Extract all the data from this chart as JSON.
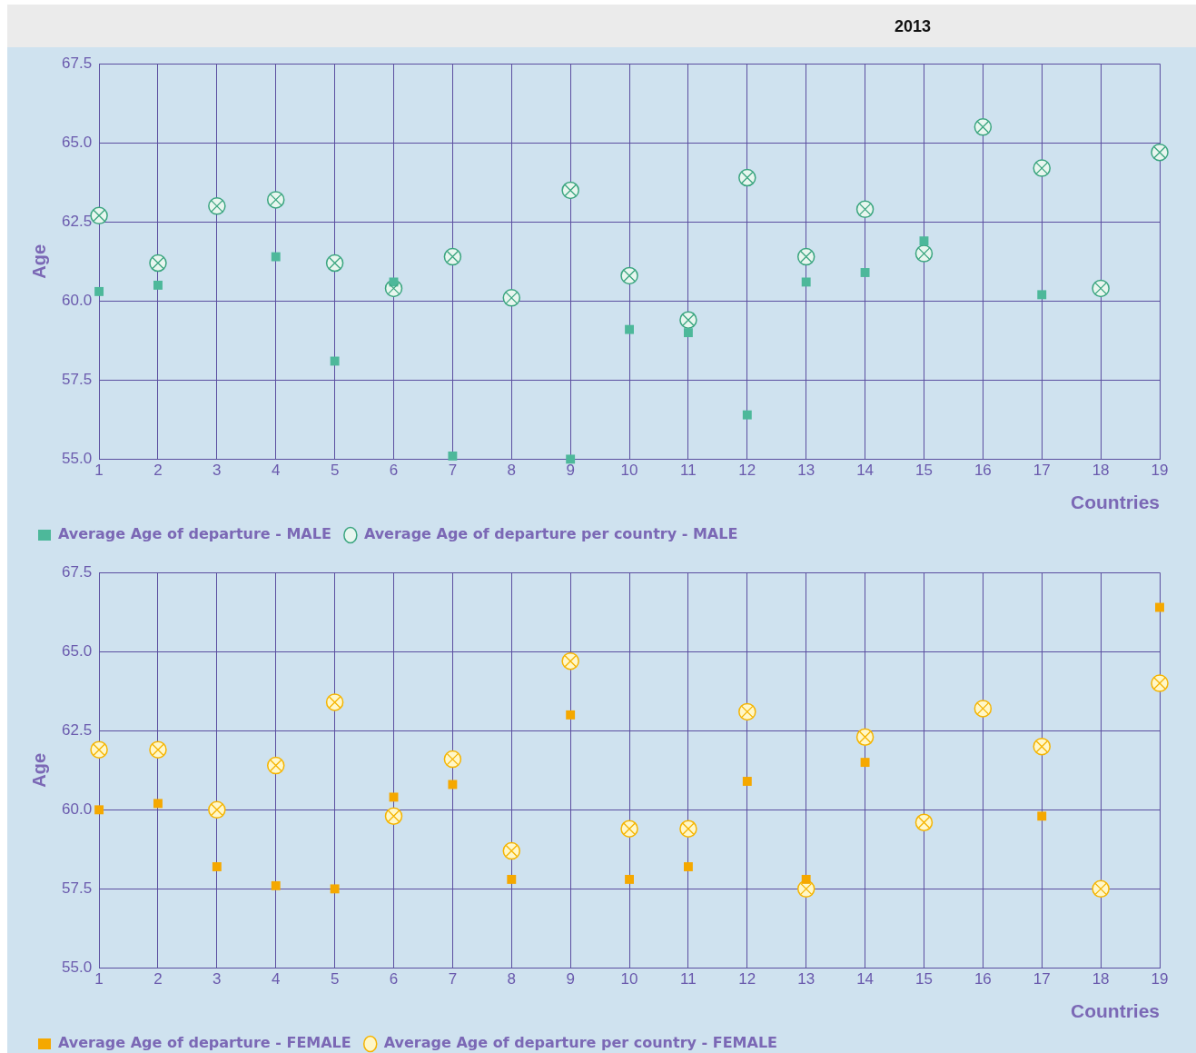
{
  "chart_data": [
    {
      "type": "scatter",
      "title": "2013",
      "xlabel": "Countries",
      "ylabel": "Age",
      "x": [
        1,
        2,
        3,
        4,
        5,
        6,
        7,
        8,
        9,
        10,
        11,
        12,
        13,
        14,
        15,
        16,
        17,
        18,
        19
      ],
      "xlim": [
        1,
        19
      ],
      "xticks": [
        1,
        2,
        3,
        4,
        5,
        6,
        7,
        8,
        9,
        10,
        11,
        12,
        13,
        14,
        15,
        16,
        17,
        18,
        19
      ],
      "ylim": [
        55,
        67.5
      ],
      "yticks": [
        {
          "value": 55,
          "label": "55.0"
        },
        {
          "value": 57.5,
          "label": "57.5"
        },
        {
          "value": 60,
          "label": "60.0"
        },
        {
          "value": 62.5,
          "label": "62.5"
        },
        {
          "value": 65,
          "label": "65.0"
        },
        {
          "value": 67.5,
          "label": "67.5"
        }
      ],
      "grid": true,
      "legend": "bottom left",
      "series": [
        {
          "name": "Average Age of departure per country - MALE",
          "color": "#3aa57f",
          "marker": "circle",
          "values": [
            62.7,
            61.2,
            63.0,
            63.2,
            61.2,
            60.4,
            61.4,
            60.1,
            63.5,
            60.8,
            59.4,
            63.9,
            61.4,
            62.9,
            61.5,
            65.5,
            64.2,
            60.4,
            64.7
          ]
        },
        {
          "name": "Average Age of departure - MALE",
          "color": "#4db89a",
          "marker": "square",
          "values": [
            60.3,
            60.5,
            null,
            61.4,
            58.1,
            60.6,
            55.1,
            null,
            55.0,
            59.1,
            59.0,
            56.4,
            60.6,
            60.9,
            61.9,
            null,
            60.2,
            null,
            null
          ]
        }
      ]
    },
    {
      "type": "scatter",
      "xlabel": "Countries",
      "ylabel": "Age",
      "x": [
        1,
        2,
        3,
        4,
        5,
        6,
        7,
        8,
        9,
        10,
        11,
        12,
        13,
        14,
        15,
        16,
        17,
        18,
        19
      ],
      "xlim": [
        1,
        19
      ],
      "xticks": [
        1,
        2,
        3,
        4,
        5,
        6,
        7,
        8,
        9,
        10,
        11,
        12,
        13,
        14,
        15,
        16,
        17,
        18,
        19
      ],
      "ylim": [
        55,
        67.5
      ],
      "yticks": [
        {
          "value": 55,
          "label": "55.0"
        },
        {
          "value": 57.5,
          "label": "57.5"
        },
        {
          "value": 60,
          "label": "60.0"
        },
        {
          "value": 62.5,
          "label": "62.5"
        },
        {
          "value": 65,
          "label": "65.0"
        },
        {
          "value": 67.5,
          "label": "67.5"
        }
      ],
      "grid": true,
      "legend": "bottom left",
      "series": [
        {
          "name": "Average Age of departure per country - FEMALE",
          "color": "#f5b400",
          "marker": "circle",
          "values": [
            61.9,
            61.9,
            60.0,
            61.4,
            63.4,
            59.8,
            61.6,
            58.7,
            64.7,
            59.4,
            59.4,
            63.1,
            57.5,
            62.3,
            59.6,
            63.2,
            62.0,
            57.5,
            64.0
          ]
        },
        {
          "name": "Average Age of departure - FEMALE",
          "color": "#f5a800",
          "marker": "square",
          "values": [
            60.0,
            60.2,
            58.2,
            57.6,
            57.5,
            60.4,
            60.8,
            57.8,
            63.0,
            57.8,
            58.2,
            60.9,
            57.8,
            61.5,
            null,
            null,
            59.8,
            null,
            66.4
          ]
        }
      ]
    }
  ]
}
